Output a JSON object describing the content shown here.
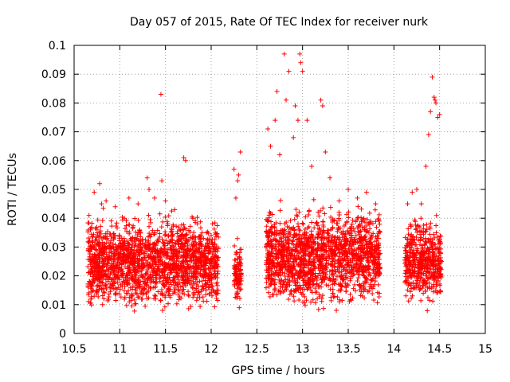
{
  "chart_data": {
    "type": "scatter",
    "title": "Day 057 of 2015, Rate Of TEC Index for receiver nurk",
    "xlabel": "GPS time / hours",
    "ylabel": "ROTI / TECUs",
    "xlim": [
      10.5,
      15
    ],
    "ylim": [
      0,
      0.1
    ],
    "x_ticks": [
      "10.5",
      "11",
      "11.5",
      "12",
      "12.5",
      "13",
      "13.5",
      "14",
      "14.5",
      "15"
    ],
    "y_ticks": [
      "0",
      "0.01",
      "0.02",
      "0.03",
      "0.04",
      "0.05",
      "0.06",
      "0.07",
      "0.08",
      "0.09",
      "0.1"
    ],
    "grid": true,
    "marker": "+",
    "marker_color": "#ff0000",
    "data_segments": [
      {
        "x_range": [
          10.65,
          12.08
        ],
        "y_typical": [
          0.005,
          0.045
        ]
      },
      {
        "x_range": [
          12.25,
          12.33
        ],
        "y_typical": [
          0.006,
          0.035
        ]
      },
      {
        "x_range": [
          12.6,
          13.85
        ],
        "y_typical": [
          0.004,
          0.05
        ]
      },
      {
        "x_range": [
          14.12,
          14.52
        ],
        "y_typical": [
          0.006,
          0.045
        ]
      }
    ],
    "series": [
      {
        "x": [
          10.72,
          10.8,
          10.85,
          10.78,
          10.95,
          11.05,
          11.1,
          11.2,
          11.3,
          11.32,
          11.38,
          11.45,
          11.46,
          11.5,
          11.6,
          11.7,
          11.72,
          11.8,
          11.9,
          12.0,
          12.25,
          12.27,
          12.29,
          12.3,
          12.32,
          12.62,
          12.65,
          12.7,
          12.72,
          12.75,
          12.8,
          12.82,
          12.85,
          12.9,
          12.92,
          12.95,
          12.97,
          12.98,
          13.0,
          13.05,
          13.1,
          13.2,
          13.22,
          13.25,
          13.3,
          13.4,
          13.5,
          13.6,
          13.7,
          13.8,
          14.15,
          14.2,
          14.25,
          14.3,
          14.35,
          14.38,
          14.4,
          14.42,
          14.44,
          14.45,
          14.46,
          14.48,
          14.5
        ],
        "y": [
          0.049,
          0.045,
          0.046,
          0.052,
          0.044,
          0.04,
          0.047,
          0.045,
          0.054,
          0.05,
          0.047,
          0.083,
          0.053,
          0.046,
          0.043,
          0.061,
          0.06,
          0.04,
          0.035,
          0.034,
          0.057,
          0.047,
          0.053,
          0.055,
          0.063,
          0.071,
          0.065,
          0.074,
          0.084,
          0.062,
          0.097,
          0.081,
          0.091,
          0.068,
          0.079,
          0.074,
          0.097,
          0.094,
          0.091,
          0.074,
          0.058,
          0.081,
          0.079,
          0.063,
          0.054,
          0.046,
          0.05,
          0.047,
          0.049,
          0.045,
          0.045,
          0.049,
          0.05,
          0.045,
          0.058,
          0.069,
          0.077,
          0.089,
          0.082,
          0.081,
          0.08,
          0.075,
          0.076
        ]
      }
    ]
  }
}
